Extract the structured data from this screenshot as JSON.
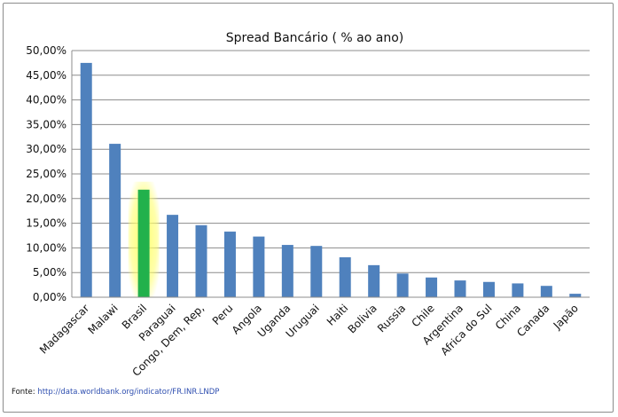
{
  "chart_data": {
    "type": "bar",
    "title": "Spread Bancário ( % ao ano)",
    "xlabel": "",
    "ylabel": "",
    "ylim": [
      0,
      50
    ],
    "yticks": [
      "0,00%",
      "5,00%",
      "10,00%",
      "15,00%",
      "20,00%",
      "25,00%",
      "30,00%",
      "35,00%",
      "40,00%",
      "45,00%",
      "50,00%"
    ],
    "grid": true,
    "categories": [
      "Madagascar",
      "Malawi",
      "Brasil",
      "Paraguai",
      "Congo, Dem, Rep,",
      "Peru",
      "Angola",
      "Uganda",
      "Uruguai",
      "Haiti",
      "Bolivia",
      "Russia",
      "Chile",
      "Argentina",
      "Africa do Sul",
      "China",
      "Canada",
      "Japão"
    ],
    "values": [
      47.5,
      31.1,
      21.8,
      16.7,
      14.6,
      13.3,
      12.3,
      10.6,
      10.4,
      8.1,
      6.5,
      4.8,
      4.0,
      3.4,
      3.1,
      2.8,
      2.3,
      0.7
    ],
    "highlight": "Brasil",
    "colors": {
      "bar": "#4f81bd",
      "highlight_bar": "#22b14c",
      "highlight_glow": "#ffff66",
      "grid": "#8c8c8c"
    }
  },
  "source": {
    "label": "Fonte:",
    "url": "http://data.worldbank.org/indicator/FR.INR.LNDP"
  }
}
